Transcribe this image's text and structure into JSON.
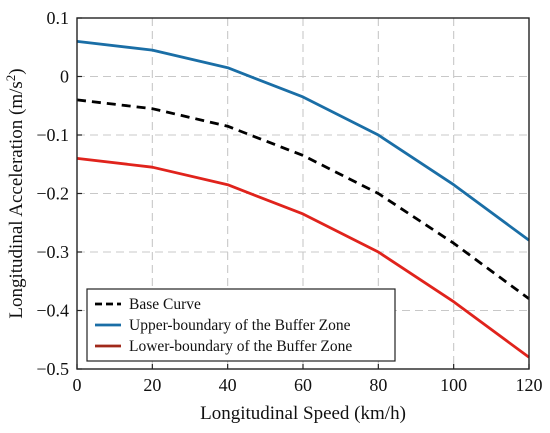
{
  "chart_data": {
    "type": "line",
    "xlabel": "Longitudinal Speed (km/h)",
    "ylabel": {
      "main": "Longitudinal Acceleration (m/s",
      "sup": "2",
      "close": ")"
    },
    "xlim": [
      0,
      120
    ],
    "ylim": [
      -0.5,
      0.1
    ],
    "xticks": [
      0,
      20,
      40,
      60,
      80,
      100,
      120
    ],
    "yticks": [
      -0.5,
      -0.4,
      -0.3,
      -0.2,
      -0.1,
      0,
      0.1
    ],
    "xtick_labels": [
      "0",
      "20",
      "40",
      "60",
      "80",
      "100",
      "120"
    ],
    "ytick_labels": [
      "−0.5",
      "−0.4",
      "−0.3",
      "−0.2",
      "−0.1",
      "0",
      "0.1"
    ],
    "grid": true,
    "grid_style": "dashed",
    "legend_position": "bottom-left",
    "x": [
      0,
      20,
      40,
      60,
      80,
      100,
      120
    ],
    "series": [
      {
        "name": "Base Curve",
        "values": [
          -0.04,
          -0.055,
          -0.085,
          -0.135,
          -0.2,
          -0.285,
          -0.38
        ],
        "color": "#000000",
        "dash": "dashed"
      },
      {
        "name": "Upper-boundary of the Buffer Zone",
        "values": [
          0.06,
          0.045,
          0.015,
          -0.035,
          -0.1,
          -0.185,
          -0.28
        ],
        "color": "#1a6ea6",
        "dash": "solid"
      },
      {
        "name": "Lower-boundary of the Buffer Zone",
        "values": [
          -0.14,
          -0.155,
          -0.185,
          -0.235,
          -0.3,
          -0.385,
          -0.48
        ],
        "color": "#e0231c",
        "dash": "solid"
      }
    ],
    "legend_colors": [
      "#000000",
      "#1a6ea6",
      "#a0291a"
    ]
  }
}
